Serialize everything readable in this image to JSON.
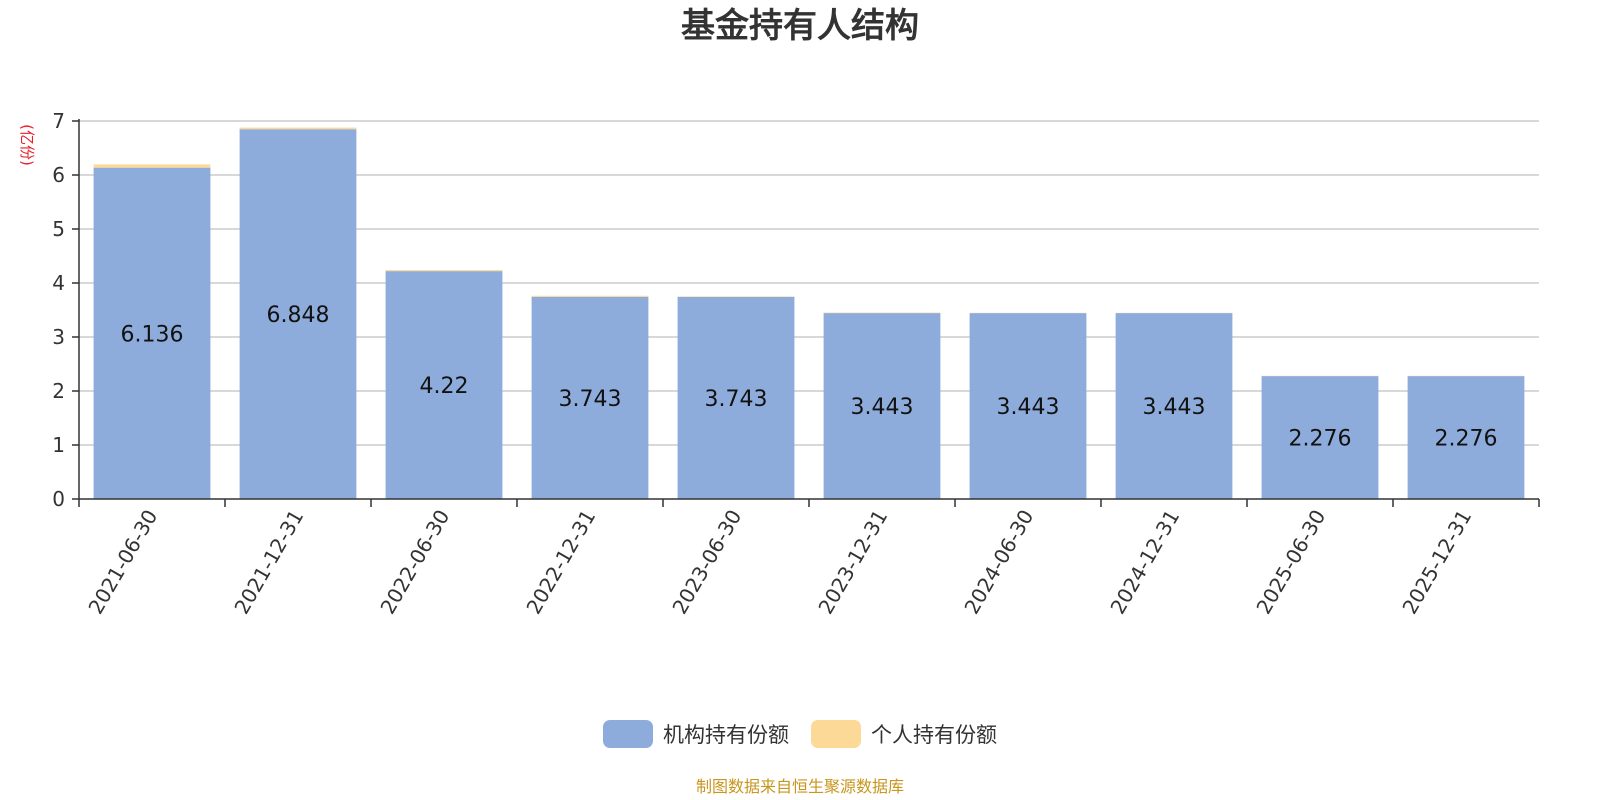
{
  "chart_data": {
    "type": "bar",
    "stacked": true,
    "title": "基金持有人结构",
    "unit_label": "(亿份)",
    "categories": [
      "2021-06-30",
      "2021-12-31",
      "2022-06-30",
      "2022-12-31",
      "2023-06-30",
      "2023-12-31",
      "2024-06-30",
      "2024-12-31",
      "2025-06-30",
      "2025-12-31"
    ],
    "series": [
      {
        "name": "机构持有份额",
        "color": "#8eacdb",
        "values": [
          6.136,
          6.848,
          4.22,
          3.743,
          3.743,
          3.443,
          3.443,
          3.443,
          2.276,
          2.276
        ]
      },
      {
        "name": "个人持有份额",
        "color": "#fdd998",
        "values": [
          0.06,
          0.03,
          0.02,
          0.02,
          0.01,
          0.01,
          0.005,
          0.005,
          0.005,
          0.005
        ]
      }
    ],
    "data_labels": [
      "6.136",
      "6.848",
      "4.22",
      "3.743",
      "3.743",
      "3.443",
      "3.443",
      "3.443",
      "2.276",
      "2.276"
    ],
    "ylim": [
      0,
      7
    ],
    "yticks": [
      0,
      1,
      2,
      3,
      4,
      5,
      6,
      7
    ],
    "grid": true,
    "legend_position": "bottom-center"
  },
  "source_note": "制图数据来自恒生聚源数据库",
  "colors": {
    "title": "#333333",
    "unit_label": "#e8202a",
    "source_note": "#c8961e",
    "grid": "#cccccc",
    "axis": "#333333"
  }
}
